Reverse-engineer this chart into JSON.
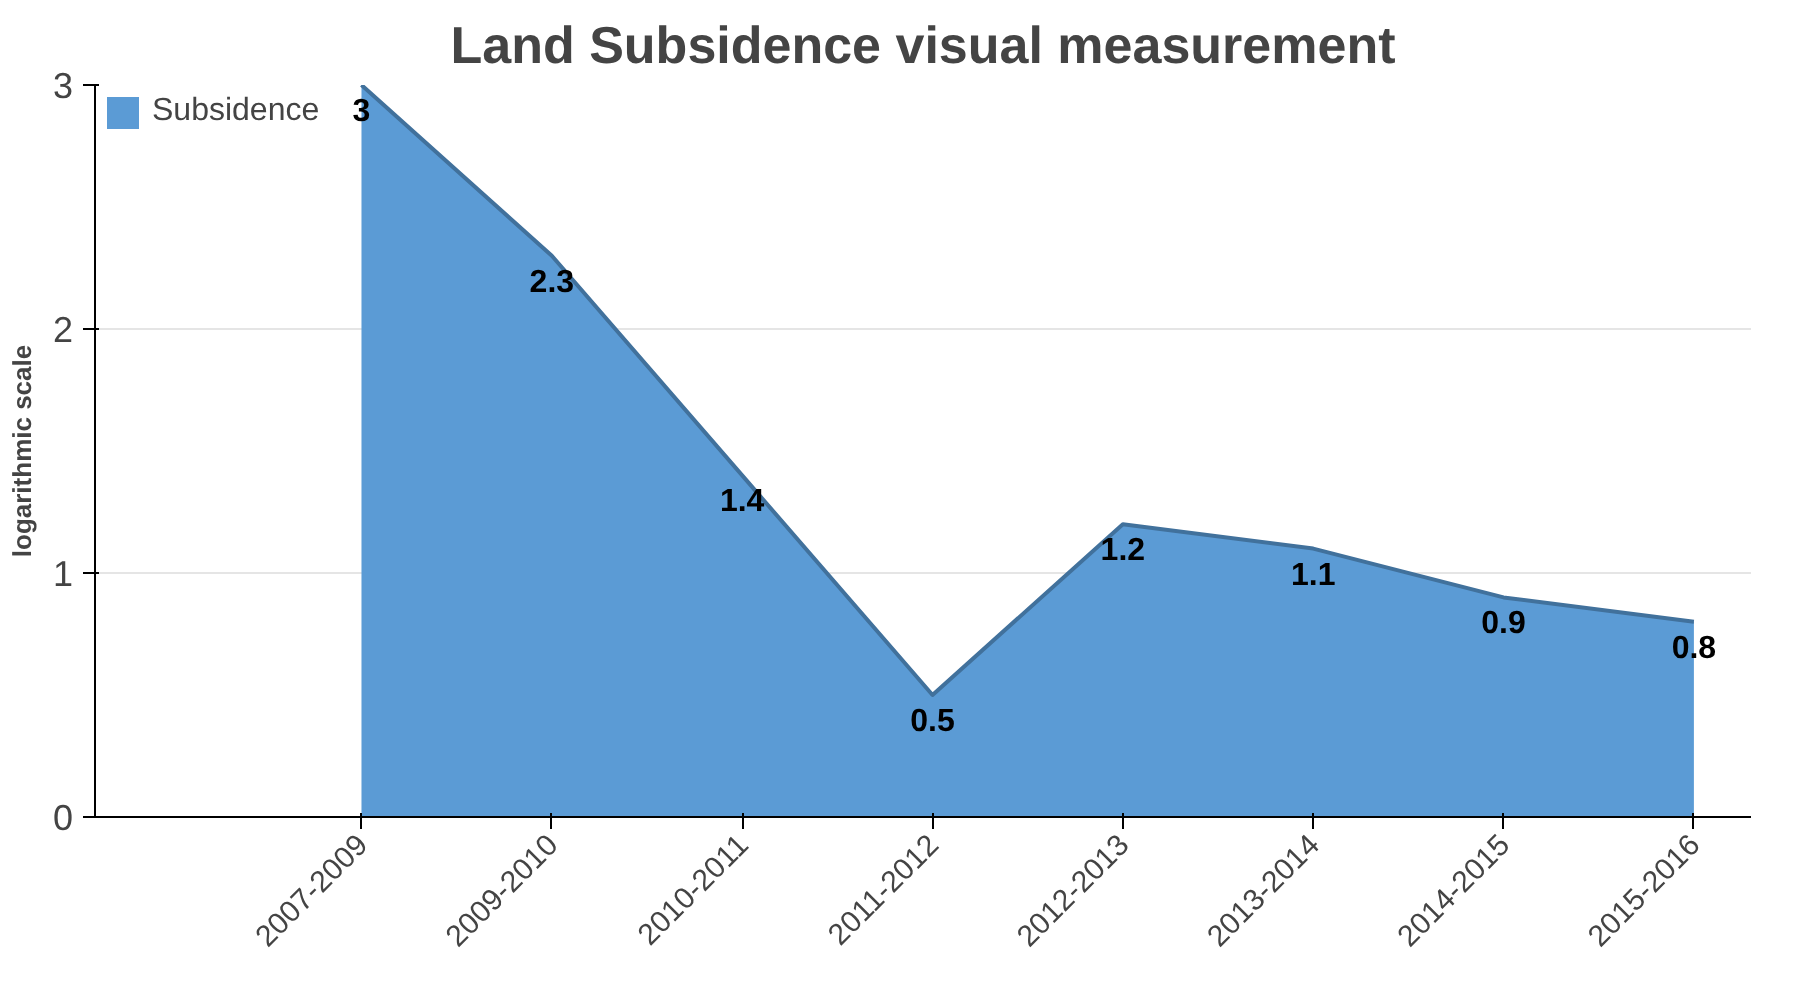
{
  "chart_data": {
    "type": "area",
    "title": "Land Subsidence visual measurement",
    "ylabel": "logarithmic scale",
    "categories": [
      "2007-2009",
      "2009-2010",
      "2010-2011",
      "2011-2012",
      "2012-2013",
      "2013-2014",
      "2014-2015",
      "2015-2016"
    ],
    "series": [
      {
        "name": "Subsidence",
        "color": "#5b9bd5",
        "values": [
          3,
          2.3,
          1.4,
          0.5,
          1.2,
          1.1,
          0.9,
          0.8
        ]
      }
    ],
    "ylim": [
      0,
      3
    ],
    "yticks": [
      0,
      1,
      2,
      3
    ],
    "grid": "y",
    "legend": "top left",
    "data_labels": true
  }
}
